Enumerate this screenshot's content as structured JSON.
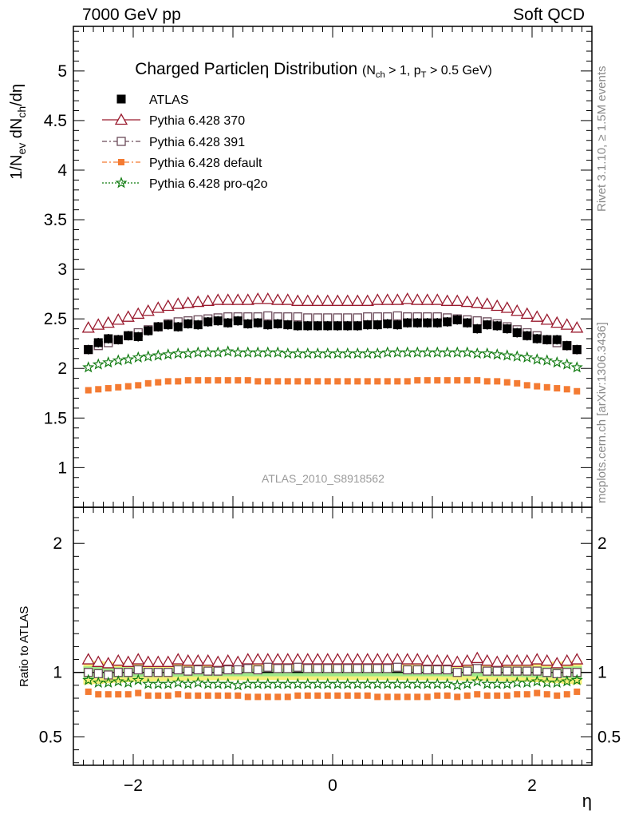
{
  "header": {
    "left": "7000 GeV pp",
    "right": "Soft QCD"
  },
  "side": {
    "rivet": "Rivet 3.1.10, ≥ 1.5M events",
    "mcplots": "mcplots.cern.ch [arXiv:1306.3436]"
  },
  "watermark": "ATLAS_2010_S8918562",
  "colors": {
    "ATLAS": "#000000",
    "p370": "#9a1b2f",
    "p391": "#6b4a59",
    "default": "#f47b32",
    "proq2o": "#0f7a0f",
    "band_yellow": "#f6f07a",
    "band_green": "#9ee88a"
  },
  "chart_data": [
    {
      "type": "scatter",
      "panel": "main",
      "title_main": "Charged Particleη Distribution",
      "title_cuts": "(N_ch > 1, p_T > 0.5 GeV)",
      "ylabel": "1/N_ev dN_ch/dη",
      "xlim": [
        -2.6,
        2.6
      ],
      "ylim": [
        0.6,
        5.45
      ],
      "yticks": [
        "1",
        "1.5",
        "2",
        "2.5",
        "3",
        "3.5",
        "4",
        "4.5",
        "5"
      ],
      "x": [
        -2.45,
        -2.35,
        -2.25,
        -2.15,
        -2.05,
        -1.95,
        -1.85,
        -1.75,
        -1.65,
        -1.55,
        -1.45,
        -1.35,
        -1.25,
        -1.15,
        -1.05,
        -0.95,
        -0.85,
        -0.75,
        -0.65,
        -0.55,
        -0.45,
        -0.35,
        -0.25,
        -0.15,
        -0.05,
        0.05,
        0.15,
        0.25,
        0.35,
        0.45,
        0.55,
        0.65,
        0.75,
        0.85,
        0.95,
        1.05,
        1.15,
        1.25,
        1.35,
        1.45,
        1.55,
        1.65,
        1.75,
        1.85,
        1.95,
        2.05,
        2.15,
        2.25,
        2.35,
        2.45
      ],
      "series": [
        {
          "name": "ATLAS",
          "values": [
            2.19,
            2.26,
            2.3,
            2.29,
            2.33,
            2.32,
            2.38,
            2.42,
            2.44,
            2.42,
            2.45,
            2.44,
            2.47,
            2.48,
            2.46,
            2.48,
            2.45,
            2.46,
            2.44,
            2.45,
            2.44,
            2.43,
            2.43,
            2.43,
            2.43,
            2.43,
            2.43,
            2.43,
            2.44,
            2.44,
            2.45,
            2.44,
            2.46,
            2.46,
            2.46,
            2.46,
            2.47,
            2.49,
            2.46,
            2.4,
            2.44,
            2.43,
            2.4,
            2.36,
            2.33,
            2.3,
            2.29,
            2.29,
            2.23,
            2.19
          ]
        },
        {
          "name": "Pythia 6.428 370",
          "values": [
            2.41,
            2.44,
            2.46,
            2.49,
            2.52,
            2.55,
            2.58,
            2.61,
            2.63,
            2.65,
            2.66,
            2.67,
            2.68,
            2.69,
            2.69,
            2.69,
            2.69,
            2.7,
            2.7,
            2.69,
            2.69,
            2.68,
            2.68,
            2.68,
            2.68,
            2.68,
            2.68,
            2.68,
            2.68,
            2.69,
            2.69,
            2.69,
            2.7,
            2.69,
            2.69,
            2.69,
            2.68,
            2.68,
            2.67,
            2.66,
            2.65,
            2.63,
            2.61,
            2.58,
            2.55,
            2.52,
            2.49,
            2.46,
            2.44,
            2.41
          ]
        },
        {
          "name": "Pythia 6.428 391",
          "values": [
            2.19,
            2.23,
            2.26,
            2.29,
            2.33,
            2.36,
            2.39,
            2.42,
            2.45,
            2.47,
            2.48,
            2.49,
            2.5,
            2.51,
            2.52,
            2.52,
            2.52,
            2.52,
            2.53,
            2.52,
            2.52,
            2.52,
            2.51,
            2.51,
            2.51,
            2.51,
            2.51,
            2.51,
            2.52,
            2.52,
            2.52,
            2.53,
            2.52,
            2.52,
            2.52,
            2.52,
            2.51,
            2.5,
            2.49,
            2.48,
            2.47,
            2.45,
            2.42,
            2.39,
            2.36,
            2.33,
            2.29,
            2.26,
            2.23,
            2.19
          ]
        },
        {
          "name": "Pythia 6.428 default",
          "values": [
            1.78,
            1.79,
            1.8,
            1.81,
            1.82,
            1.83,
            1.85,
            1.86,
            1.87,
            1.87,
            1.88,
            1.88,
            1.88,
            1.88,
            1.88,
            1.88,
            1.88,
            1.87,
            1.87,
            1.87,
            1.87,
            1.87,
            1.87,
            1.87,
            1.87,
            1.87,
            1.87,
            1.87,
            1.87,
            1.87,
            1.87,
            1.87,
            1.87,
            1.88,
            1.88,
            1.88,
            1.88,
            1.88,
            1.88,
            1.88,
            1.87,
            1.87,
            1.86,
            1.85,
            1.83,
            1.82,
            1.81,
            1.8,
            1.79,
            1.77
          ]
        },
        {
          "name": "Pythia 6.428 pro-q2o",
          "values": [
            2.01,
            2.04,
            2.06,
            2.08,
            2.09,
            2.11,
            2.12,
            2.13,
            2.14,
            2.15,
            2.15,
            2.16,
            2.16,
            2.16,
            2.17,
            2.16,
            2.16,
            2.16,
            2.16,
            2.16,
            2.15,
            2.15,
            2.15,
            2.15,
            2.15,
            2.15,
            2.15,
            2.15,
            2.15,
            2.15,
            2.16,
            2.16,
            2.16,
            2.16,
            2.16,
            2.16,
            2.16,
            2.16,
            2.16,
            2.15,
            2.15,
            2.14,
            2.13,
            2.12,
            2.11,
            2.09,
            2.08,
            2.06,
            2.04,
            2.01
          ]
        }
      ]
    },
    {
      "type": "scatter",
      "panel": "ratio",
      "ylabel": "Ratio to ATLAS",
      "xlabel": "η",
      "xlim": [
        -2.6,
        2.6
      ],
      "ylim": [
        0.28,
        2.28
      ],
      "xticks": [
        "−2",
        "0",
        "2"
      ],
      "yticks": [
        "0.5",
        "1",
        "2"
      ],
      "series": [
        {
          "name": "Pythia 6.428 370",
          "values": [
            1.1,
            1.08,
            1.07,
            1.09,
            1.08,
            1.1,
            1.08,
            1.08,
            1.08,
            1.1,
            1.09,
            1.09,
            1.09,
            1.08,
            1.09,
            1.08,
            1.1,
            1.1,
            1.1,
            1.1,
            1.1,
            1.1,
            1.1,
            1.1,
            1.1,
            1.1,
            1.1,
            1.1,
            1.1,
            1.1,
            1.1,
            1.1,
            1.1,
            1.1,
            1.09,
            1.09,
            1.09,
            1.08,
            1.09,
            1.11,
            1.09,
            1.08,
            1.09,
            1.09,
            1.09,
            1.1,
            1.09,
            1.07,
            1.09,
            1.1
          ]
        },
        {
          "name": "Pythia 6.428 391",
          "values": [
            1.0,
            0.99,
            0.98,
            1.0,
            1.0,
            1.02,
            1.0,
            1.0,
            1.0,
            1.02,
            1.01,
            1.02,
            1.01,
            1.01,
            1.02,
            1.02,
            1.03,
            1.02,
            1.04,
            1.03,
            1.03,
            1.04,
            1.03,
            1.03,
            1.03,
            1.03,
            1.03,
            1.03,
            1.03,
            1.03,
            1.03,
            1.04,
            1.02,
            1.02,
            1.02,
            1.02,
            1.02,
            1.0,
            1.01,
            1.03,
            1.01,
            1.01,
            1.01,
            1.01,
            1.01,
            1.01,
            1.0,
            0.99,
            1.0,
            1.0
          ]
        },
        {
          "name": "Pythia 6.428 default",
          "values": [
            0.85,
            0.83,
            0.83,
            0.83,
            0.83,
            0.84,
            0.82,
            0.82,
            0.82,
            0.83,
            0.82,
            0.82,
            0.82,
            0.82,
            0.82,
            0.82,
            0.81,
            0.81,
            0.81,
            0.81,
            0.81,
            0.82,
            0.82,
            0.82,
            0.82,
            0.82,
            0.82,
            0.82,
            0.82,
            0.81,
            0.81,
            0.81,
            0.81,
            0.81,
            0.81,
            0.82,
            0.82,
            0.81,
            0.82,
            0.83,
            0.82,
            0.82,
            0.82,
            0.83,
            0.83,
            0.84,
            0.83,
            0.82,
            0.83,
            0.85
          ]
        },
        {
          "name": "Pythia 6.428 pro-q2o",
          "values": [
            0.94,
            0.92,
            0.92,
            0.93,
            0.92,
            0.94,
            0.91,
            0.91,
            0.91,
            0.92,
            0.91,
            0.92,
            0.91,
            0.91,
            0.91,
            0.9,
            0.91,
            0.91,
            0.91,
            0.91,
            0.91,
            0.91,
            0.91,
            0.91,
            0.91,
            0.91,
            0.91,
            0.91,
            0.91,
            0.91,
            0.91,
            0.91,
            0.91,
            0.91,
            0.91,
            0.91,
            0.91,
            0.9,
            0.91,
            0.93,
            0.91,
            0.91,
            0.91,
            0.92,
            0.92,
            0.93,
            0.92,
            0.92,
            0.93,
            0.94
          ]
        }
      ],
      "bands": {
        "inner_halfwidth": 0.03,
        "outer_halfwidth": 0.06
      }
    }
  ]
}
